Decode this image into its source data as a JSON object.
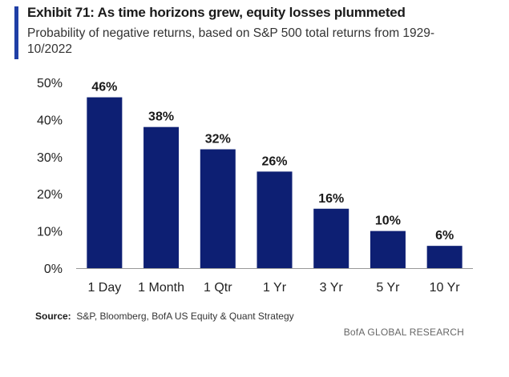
{
  "header": {
    "title": "Exhibit 71: As time horizons grew, equity losses plummeted",
    "subtitle": "Probability of negative returns, based on S&P 500 total returns from 1929-10/2022"
  },
  "footer": {
    "source_label": "Source:",
    "source_text": "S&P, Bloomberg, BofA US Equity & Quant Strategy",
    "brand": "BofA GLOBAL RESEARCH"
  },
  "colors": {
    "bar": "#0d1f73",
    "accent": "#1f3fa6",
    "axis": "#999999"
  },
  "chart_data": {
    "type": "bar",
    "categories": [
      "1 Day",
      "1 Month",
      "1 Qtr",
      "1 Yr",
      "3 Yr",
      "5 Yr",
      "10 Yr"
    ],
    "values": [
      46,
      38,
      32,
      26,
      16,
      10,
      6
    ],
    "data_labels": [
      "46%",
      "38%",
      "32%",
      "26%",
      "16%",
      "10%",
      "6%"
    ],
    "yticks": [
      0,
      10,
      20,
      30,
      40,
      50
    ],
    "ytick_labels": [
      "0%",
      "10%",
      "20%",
      "30%",
      "40%",
      "50%"
    ],
    "ylim": [
      0,
      50
    ],
    "grid": false,
    "legend": false
  }
}
